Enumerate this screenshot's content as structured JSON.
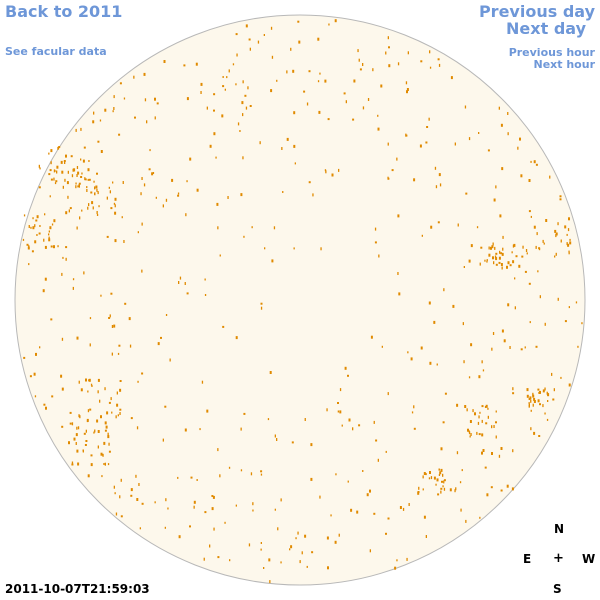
{
  "nav": {
    "back_to_year": "Back to 2011",
    "see_facular": "See facular data",
    "previous_day": "Previous day",
    "next_day": "Next day",
    "previous_hour": "Previous hour",
    "next_hour": "Next hour"
  },
  "compass": {
    "north": "N",
    "east": "E",
    "west": "W",
    "south": "S",
    "center": "+"
  },
  "timestamp": "2011-10-07T21:59:03",
  "colors": {
    "link": "#6e97d8",
    "disk_fill": "#fdf8ec",
    "disk_edge": "#b8b8b8",
    "feature": "#e08a00"
  }
}
